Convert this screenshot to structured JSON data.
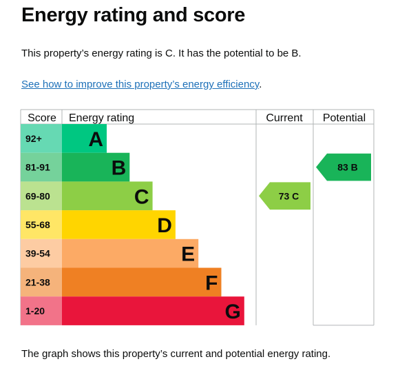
{
  "heading": "Energy rating and score",
  "summary": "This property’s energy rating is C. It has the potential to be B.",
  "improve_link": "See how to improve this property’s energy efficiency",
  "improve_link_suffix": ".",
  "footer": "The graph shows this property’s current and potential energy rating.",
  "chart_data": {
    "type": "table",
    "headers": {
      "score": "Score",
      "rating": "Energy rating",
      "current": "Current",
      "potential": "Potential"
    },
    "bands": [
      {
        "score": "92+",
        "letter": "A",
        "color": "#00c781",
        "label_color": "#66d9b3"
      },
      {
        "score": "81-91",
        "letter": "B",
        "color": "#19b459",
        "label_color": "#75d29b"
      },
      {
        "score": "69-80",
        "letter": "C",
        "color": "#8dce46",
        "label_color": "#bbe290"
      },
      {
        "score": "55-68",
        "letter": "D",
        "color": "#ffd500",
        "label_color": "#ffe666"
      },
      {
        "score": "39-54",
        "letter": "E",
        "color": "#fcaa65",
        "label_color": "#fdcca3"
      },
      {
        "score": "21-38",
        "letter": "F",
        "color": "#ef8023",
        "label_color": "#f5b37b"
      },
      {
        "score": "1-20",
        "letter": "G",
        "color": "#e9153b",
        "label_color": "#f27389"
      }
    ],
    "current": {
      "score": 73,
      "band": "C",
      "label": "73  C",
      "color": "#8dce46"
    },
    "potential": {
      "score": 83,
      "band": "B",
      "label": "83  B",
      "color": "#19b459"
    }
  }
}
